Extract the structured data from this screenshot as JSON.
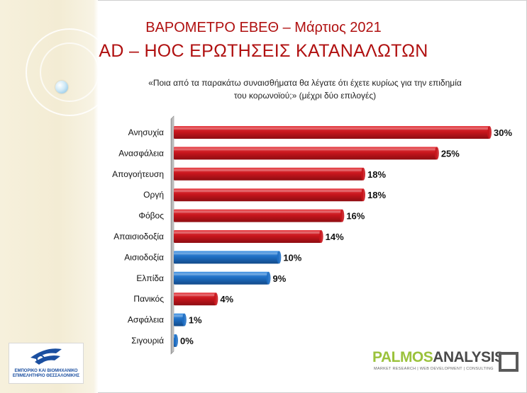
{
  "header": {
    "title_line1": "ΒΑΡΟΜΕΤΡΟ ΕΒΕΘ – Μάρτιος 2021",
    "title_line2": "AD – HOC ΕΡΩΤΗΣΕΙΣ ΚΑΤΑΝΑΛΩΤΩΝ",
    "question_line1": "«Ποια από τα παρακάτω συναισθήματα  θα λέγατε ότι έχετε κυρίως για την επιδημία",
    "question_line2": "του κορωνοϊού;» (μέχρι δύο επιλογές)"
  },
  "logos": {
    "left_line1": "ΕΜΠΟΡΙΚΟ ΚΑΙ ΒΙΟΜΗΧΑΝΙΚΟ",
    "left_line2": "ΕΠΙΜΕΛΗΤΗΡΙΟ ΘΕΣΣΑΛΟΝΙΚΗΣ",
    "right_brand_part1": "PALMOS",
    "right_brand_part2": "ANALYSIS",
    "right_tagline": "MARKET RESEARCH | WEB DEVELOPMENT | CONSULTING"
  },
  "colors": {
    "negative": "#c8161d",
    "positive": "#1f6fc4",
    "title": "#b01010"
  },
  "chart_data": {
    "type": "bar",
    "orientation": "horizontal",
    "categories": [
      "Ανησυχία",
      "Ανασφάλεια",
      "Απογοήτευση",
      "Οργή",
      "Φόβος",
      "Απαισιοδοξία",
      "Αισιοδοξία",
      "Ελπίδα",
      "Πανικός",
      "Ασφάλεια",
      "Σιγουριά"
    ],
    "values": [
      30,
      25,
      18,
      18,
      16,
      14,
      10,
      9,
      4,
      1,
      0
    ],
    "value_labels": [
      "30%",
      "25%",
      "18%",
      "18%",
      "16%",
      "14%",
      "10%",
      "9%",
      "4%",
      "1%",
      "0%"
    ],
    "bar_groups": [
      "negative",
      "negative",
      "negative",
      "negative",
      "negative",
      "negative",
      "positive",
      "positive",
      "negative",
      "positive",
      "positive"
    ],
    "unit": "%",
    "xlim": [
      0,
      30
    ],
    "grid": false,
    "legend": "none"
  }
}
